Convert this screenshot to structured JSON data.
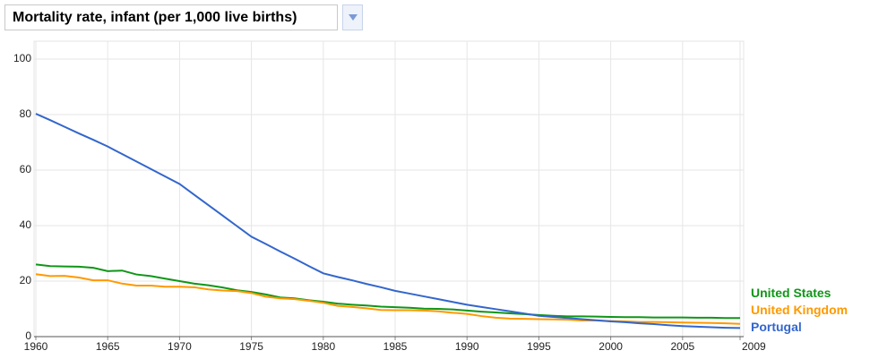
{
  "chart_data": {
    "type": "line",
    "title": "Mortality rate, infant (per 1,000 live births)",
    "x": [
      1960,
      1961,
      1962,
      1963,
      1964,
      1965,
      1966,
      1967,
      1968,
      1969,
      1970,
      1971,
      1972,
      1973,
      1974,
      1975,
      1976,
      1977,
      1978,
      1979,
      1980,
      1981,
      1982,
      1983,
      1984,
      1985,
      1986,
      1987,
      1988,
      1989,
      1990,
      1991,
      1992,
      1993,
      1994,
      1995,
      1996,
      1997,
      1998,
      1999,
      2000,
      2001,
      2002,
      2003,
      2004,
      2005,
      2006,
      2007,
      2008,
      2009
    ],
    "series": [
      {
        "name": "United States",
        "color": "#109618",
        "values": [
          26,
          25.4,
          25.3,
          25.2,
          24.8,
          23.6,
          23.8,
          22.4,
          21.8,
          20.9,
          20.0,
          19.1,
          18.5,
          17.7,
          16.7,
          16.1,
          15.2,
          14.1,
          13.8,
          13.1,
          12.6,
          11.9,
          11.5,
          11.2,
          10.8,
          10.6,
          10.4,
          10.1,
          10,
          9.8,
          9.4,
          9.0,
          8.7,
          8.4,
          8.1,
          7.8,
          7.5,
          7.3,
          7.3,
          7.2,
          7.1,
          7.0,
          7.0,
          6.9,
          6.9,
          6.9,
          6.8,
          6.8,
          6.7,
          6.7
        ]
      },
      {
        "name": "United Kingdom",
        "color": "#ff9900",
        "values": [
          22.5,
          21.8,
          21.9,
          21.3,
          20.3,
          20.3,
          19.1,
          18.4,
          18.4,
          18.0,
          18.0,
          17.8,
          17.0,
          16.6,
          16.4,
          15.7,
          14.4,
          13.8,
          13.5,
          12.9,
          12.2,
          11.1,
          10.7,
          10.2,
          9.6,
          9.5,
          9.5,
          9.4,
          9.1,
          8.6,
          8.2,
          7.4,
          6.8,
          6.5,
          6.4,
          6.3,
          6.2,
          6.1,
          5.8,
          5.8,
          5.6,
          5.5,
          5.3,
          5.3,
          5.2,
          5.1,
          5.0,
          4.9,
          4.8,
          4.6
        ]
      },
      {
        "name": "Portugal",
        "color": "#3366cc",
        "values": [
          80.3,
          78,
          75.6,
          73.2,
          70.9,
          68.5,
          65.8,
          63.1,
          60.4,
          57.7,
          55,
          51.2,
          47.4,
          43.6,
          39.8,
          36,
          33.4,
          30.7,
          28.1,
          25.4,
          22.8,
          21.5,
          20.3,
          19,
          17.8,
          16.5,
          15.5,
          14.5,
          13.5,
          12.5,
          11.5,
          10.7,
          9.9,
          9.1,
          8.3,
          7.5,
          7.1,
          6.7,
          6.3,
          5.9,
          5.5,
          5.2,
          4.8,
          4.5,
          4.1,
          3.8,
          3.6,
          3.4,
          3.2,
          3.1
        ]
      }
    ],
    "xlim": [
      1960,
      2009
    ],
    "xticks": [
      1960,
      1965,
      1970,
      1975,
      1980,
      1985,
      1990,
      1995,
      2000,
      2005,
      2009
    ],
    "ylim": [
      0,
      100
    ],
    "yticks": [
      0,
      20,
      40,
      60,
      80,
      100
    ],
    "grid": true,
    "legend": "right"
  }
}
